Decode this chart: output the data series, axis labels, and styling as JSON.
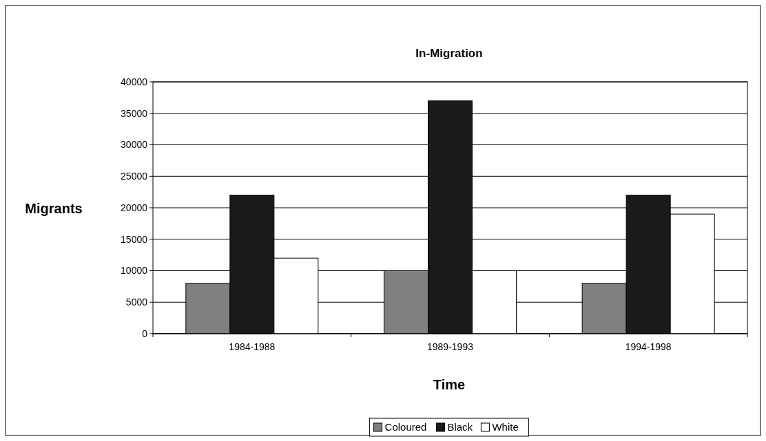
{
  "chart_data": {
    "type": "bar",
    "title": "In-Migration",
    "xlabel": "Time",
    "ylabel": "Migrants",
    "categories": [
      "1984-1988",
      "1989-1993",
      "1994-1998"
    ],
    "series": [
      {
        "name": "Coloured",
        "color": "#808080",
        "values": [
          8000,
          10000,
          8000
        ]
      },
      {
        "name": "Black",
        "color": "#1a1a1a",
        "values": [
          22000,
          37000,
          22000
        ]
      },
      {
        "name": "White",
        "color": "#ffffff",
        "values": [
          12000,
          10000,
          19000
        ]
      }
    ],
    "ylim": [
      0,
      40000
    ],
    "yticks": [
      0,
      5000,
      10000,
      15000,
      20000,
      25000,
      30000,
      35000,
      40000
    ],
    "grid": "y",
    "legend": "bottom"
  }
}
